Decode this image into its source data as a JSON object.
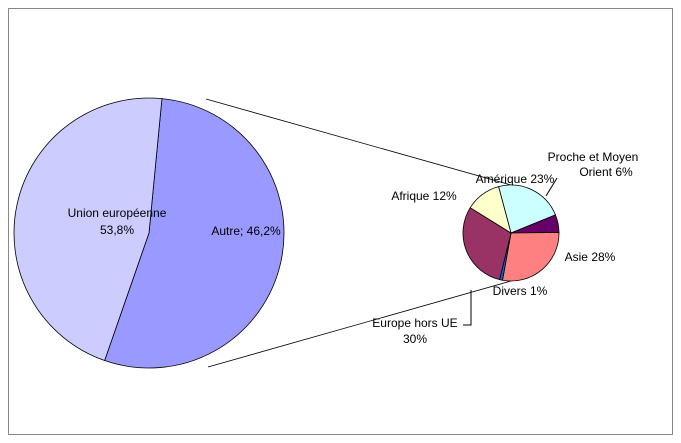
{
  "chart_data": [
    {
      "type": "pie",
      "values": [
        53.8,
        46.2
      ],
      "value_labels": [
        [
          "Union européenne",
          "53,8%"
        ],
        [
          "Autre; 46,2%"
        ]
      ],
      "colors": [
        "#9999ff",
        "#ccccff"
      ]
    },
    {
      "type": "pie",
      "values": [
        23,
        6,
        28,
        1,
        30,
        12
      ],
      "value_labels": [
        [
          "Amérique 23%"
        ],
        [
          "Proche et Moyen",
          "Orient 6%"
        ],
        [
          "Asie 28%"
        ],
        [
          "Divers 1%"
        ],
        [
          "Europe hors UE",
          "30%"
        ],
        [
          "Afrique 12%"
        ]
      ],
      "colors": [
        "#ccffff",
        "#660066",
        "#ff8080",
        "#0066cc",
        "#993366",
        "#ffffcc"
      ]
    }
  ]
}
